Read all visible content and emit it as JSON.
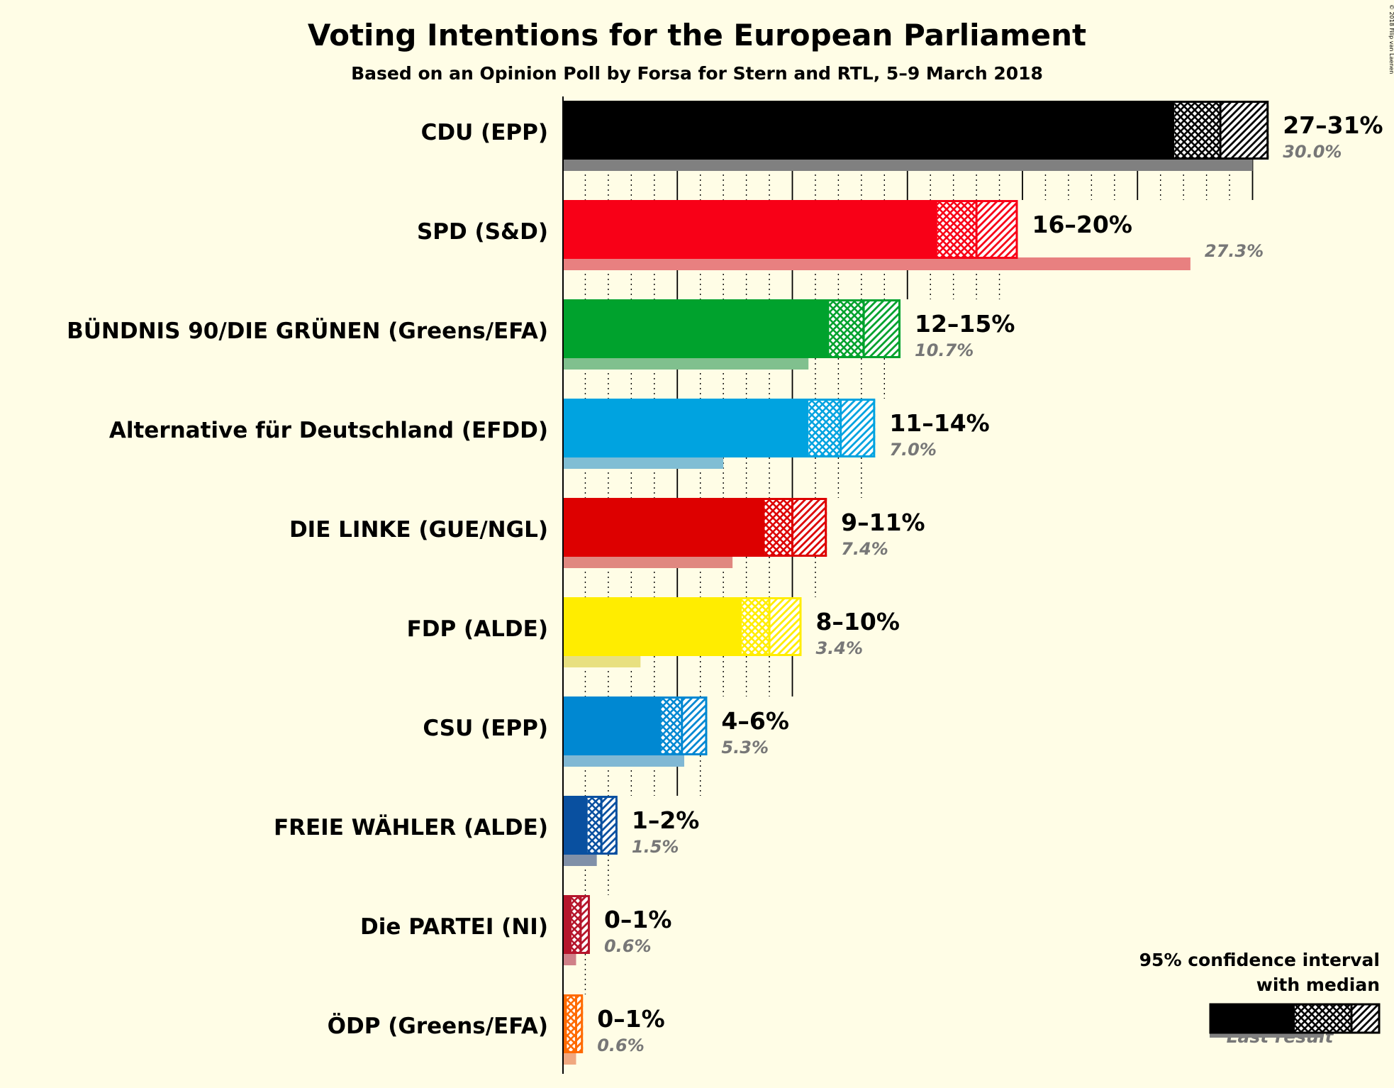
{
  "chart_data": {
    "type": "bar",
    "orientation": "horizontal",
    "title": "Voting Intentions for the European Parliament",
    "subtitle": "Based on an Opinion Poll by Forsa for Stern and RTL, 5–9 March 2018",
    "copyright": "© 2018 Filip van Laenen",
    "xlim": [
      0,
      31
    ],
    "grid": "dotted every 1%, solid every 5%",
    "series": [
      {
        "party": "CDU (EPP)",
        "color": "#000000",
        "last_color": "#808080",
        "ci_low": 26.6,
        "median": 28.6,
        "ci_high": 30.7,
        "range_label": "27–31%",
        "last_result": 30.0,
        "last_label": "30.0%"
      },
      {
        "party": "SPD (S&D)",
        "color": "#F80017",
        "last_color": "#E88080",
        "ci_low": 16.3,
        "median": 18.0,
        "ci_high": 19.8,
        "range_label": "16–20%",
        "last_result": 27.3,
        "last_label": "27.3%"
      },
      {
        "party": "BÜNDNIS 90/DIE GRÜNEN (Greens/EFA)",
        "color": "#00A22D",
        "last_color": "#80C08E",
        "ci_low": 11.6,
        "median": 13.1,
        "ci_high": 14.7,
        "range_label": "12–15%",
        "last_result": 10.7,
        "last_label": "10.7%"
      },
      {
        "party": "Alternative für Deutschland (EFDD)",
        "color": "#00A3E0",
        "last_color": "#80BED4",
        "ci_low": 10.7,
        "median": 12.1,
        "ci_high": 13.6,
        "range_label": "11–14%",
        "last_result": 7.0,
        "last_label": "7.0%"
      },
      {
        "party": "DIE LINKE (GUE/NGL)",
        "color": "#DD0000",
        "last_color": "#E08880",
        "ci_low": 8.8,
        "median": 10.0,
        "ci_high": 11.5,
        "range_label": "9–11%",
        "last_result": 7.4,
        "last_label": "7.4%"
      },
      {
        "party": "FDP (ALDE)",
        "color": "#FFED00",
        "last_color": "#E8E080",
        "ci_low": 7.8,
        "median": 9.0,
        "ci_high": 10.4,
        "range_label": "8–10%",
        "last_result": 3.4,
        "last_label": "3.4%"
      },
      {
        "party": "CSU (EPP)",
        "color": "#0088D2",
        "last_color": "#80B8D4",
        "ci_low": 4.3,
        "median": 5.2,
        "ci_high": 6.3,
        "range_label": "4–6%",
        "last_result": 5.3,
        "last_label": "5.3%"
      },
      {
        "party": "FREIE WÄHLER (ALDE)",
        "color": "#0950A0",
        "last_color": "#8090A8",
        "ci_low": 1.1,
        "median": 1.7,
        "ci_high": 2.4,
        "range_label": "1–2%",
        "last_result": 1.5,
        "last_label": "1.5%"
      },
      {
        "party": "Die PARTEI (NI)",
        "color": "#B5152B",
        "last_color": "#D08088",
        "ci_low": 0.4,
        "median": 0.8,
        "ci_high": 1.2,
        "range_label": "0–1%",
        "last_result": 0.6,
        "last_label": "0.6%"
      },
      {
        "party": "ÖDP (Greens/EFA)",
        "color": "#FF6A00",
        "last_color": "#F0A880",
        "ci_low": 0.2,
        "median": 0.6,
        "ci_high": 0.9,
        "range_label": "0–1%",
        "last_result": 0.6,
        "last_label": "0.6%"
      }
    ],
    "legend": {
      "line1": "95% confidence interval",
      "line2": "with median",
      "last_result": "Last result",
      "placement": "bottom-right"
    }
  }
}
